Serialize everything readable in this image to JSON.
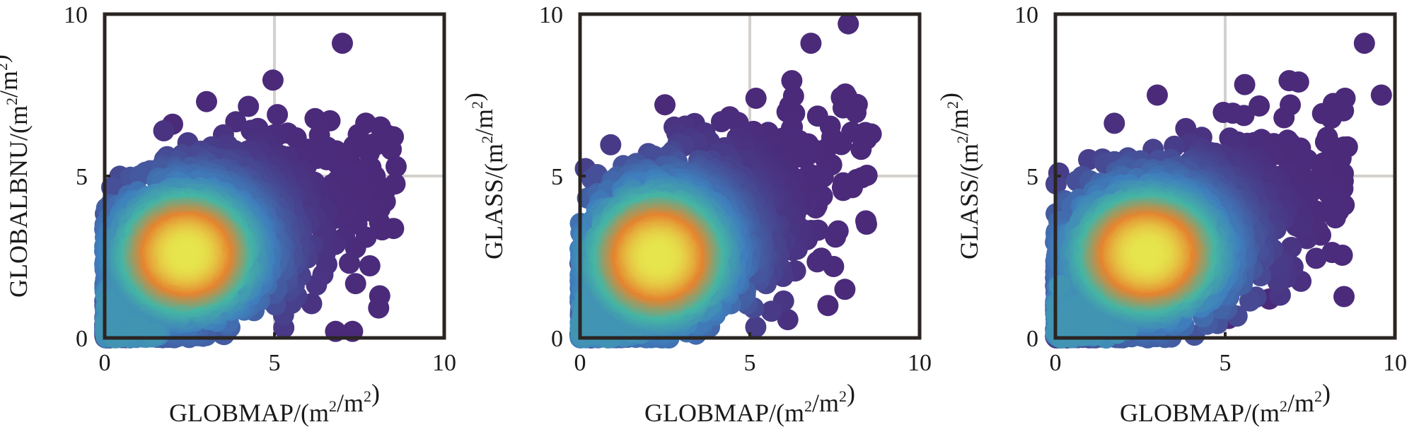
{
  "chart_data": [
    {
      "type": "scatter",
      "density_colored": true,
      "xlabel": "GLOBMAP/(m2/m2)",
      "ylabel": "GLOBALBNU/(m2/m2)",
      "xlim": [
        0,
        10
      ],
      "ylim": [
        0,
        10
      ],
      "xticks": [
        "0",
        "5",
        "10"
      ],
      "yticks": [
        "0",
        "5",
        "10"
      ],
      "grid": true,
      "density_center": [
        2.4,
        2.6
      ],
      "spread": [
        1.6,
        1.5
      ],
      "correlation": 0.55,
      "outliers": [
        [
          7.0,
          9.1
        ],
        [
          8.1,
          1.3
        ],
        [
          6.8,
          0.2
        ],
        [
          7.3,
          0.2
        ],
        [
          2.0,
          6.6
        ],
        [
          3.0,
          7.3
        ]
      ]
    },
    {
      "type": "scatter",
      "density_colored": true,
      "xlabel": "GLOBMAP/(m2/m2)",
      "ylabel": "GLASS/(m2/m2)",
      "xlim": [
        0,
        10
      ],
      "ylim": [
        0,
        10
      ],
      "xticks": [
        "0",
        "5",
        "10"
      ],
      "yticks": [
        "0",
        "5",
        "10"
      ],
      "grid": true,
      "density_center": [
        2.3,
        2.5
      ],
      "spread": [
        1.6,
        1.6
      ],
      "correlation": 0.6,
      "outliers": [
        [
          7.9,
          9.7
        ],
        [
          6.8,
          9.1
        ],
        [
          0.0,
          2.3
        ],
        [
          7.8,
          1.5
        ],
        [
          7.3,
          1.0
        ],
        [
          2.5,
          7.2
        ]
      ]
    },
    {
      "type": "scatter",
      "density_colored": true,
      "xlabel": "GLOBMAP/(m2/m2)",
      "ylabel": "GLASS/(m2/m2)",
      "xlim": [
        0,
        10
      ],
      "ylim": [
        0,
        10
      ],
      "xticks": [
        "0",
        "5",
        "10"
      ],
      "yticks": [
        "0",
        "5",
        "10"
      ],
      "grid": true,
      "density_center": [
        2.7,
        2.6
      ],
      "spread": [
        1.7,
        1.5
      ],
      "correlation": 0.6,
      "outliers": [
        [
          9.1,
          9.1
        ],
        [
          9.6,
          7.5
        ],
        [
          8.6,
          5.9
        ],
        [
          6.3,
          1.2
        ],
        [
          5.1,
          0.6
        ],
        [
          3.0,
          7.5
        ]
      ]
    }
  ],
  "colors": {
    "density_low": "#4b2a7a",
    "density_mid_low": "#3f7fbd",
    "density_mid": "#45b6a4",
    "density_mid_high": "#e5842f",
    "density_high": "#e6e54d",
    "grid": "#d4d0cd",
    "frame": "#2a2522"
  }
}
